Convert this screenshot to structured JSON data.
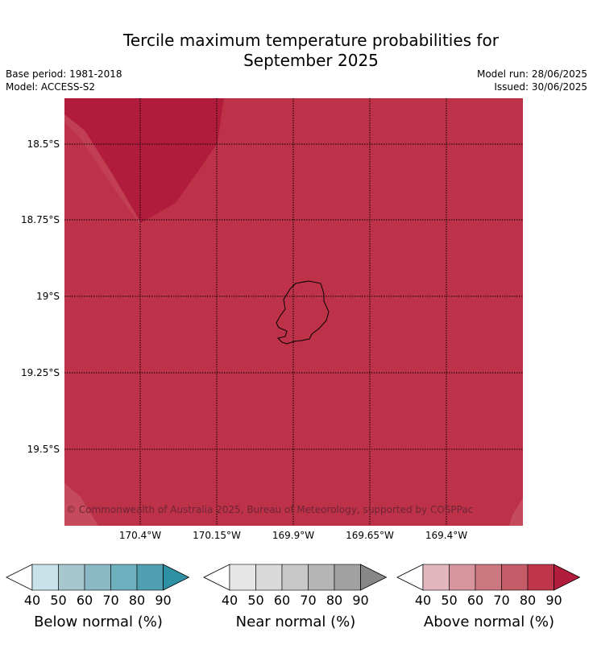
{
  "title_line1": "Tercile maximum temperature probabilities for",
  "title_line2": "September 2025",
  "meta": {
    "base_period": "Base period: 1981-2018",
    "model": "Model: ACCESS-S2",
    "model_run": "Model run: 28/06/2025",
    "issued": "Issued: 30/06/2025"
  },
  "map": {
    "latitude_labels": [
      "18.5°S",
      "18.75°S",
      "19°S",
      "19.25°S",
      "19.5°S"
    ],
    "longitude_labels": [
      "170.4°W",
      "170.15°W",
      "169.9°W",
      "169.65°W",
      "169.4°W"
    ],
    "copyright": "© Commonwealth of Australia 2025, Bureau of Meteorology, supported by COSPPac",
    "colors": {
      "prob_80_90": "#be3249",
      "prob_90_plus": "#b21c3c",
      "prob_70_80": "#c54a5c"
    }
  },
  "legends": [
    {
      "title": "Below normal (%)",
      "ticks": [
        "40",
        "50",
        "60",
        "70",
        "80",
        "90"
      ],
      "colors": [
        "#ffffff",
        "#c8e2ea",
        "#a6c7cd",
        "#8ab8c4",
        "#6fb0bf",
        "#4f9fb1",
        "#2f8fa3"
      ]
    },
    {
      "title": "Near normal (%)",
      "ticks": [
        "40",
        "50",
        "60",
        "70",
        "80",
        "90"
      ],
      "colors": [
        "#ffffff",
        "#e6e6e6",
        "#d9d9d9",
        "#c8c8c8",
        "#b5b5b5",
        "#a1a1a1",
        "#878787"
      ]
    },
    {
      "title": "Above normal (%)",
      "ticks": [
        "40",
        "50",
        "60",
        "70",
        "80",
        "90"
      ],
      "colors": [
        "#ffffff",
        "#e2b7bd",
        "#d7969e",
        "#cd777f",
        "#c45c67",
        "#bf364a",
        "#b21c3c"
      ]
    }
  ]
}
